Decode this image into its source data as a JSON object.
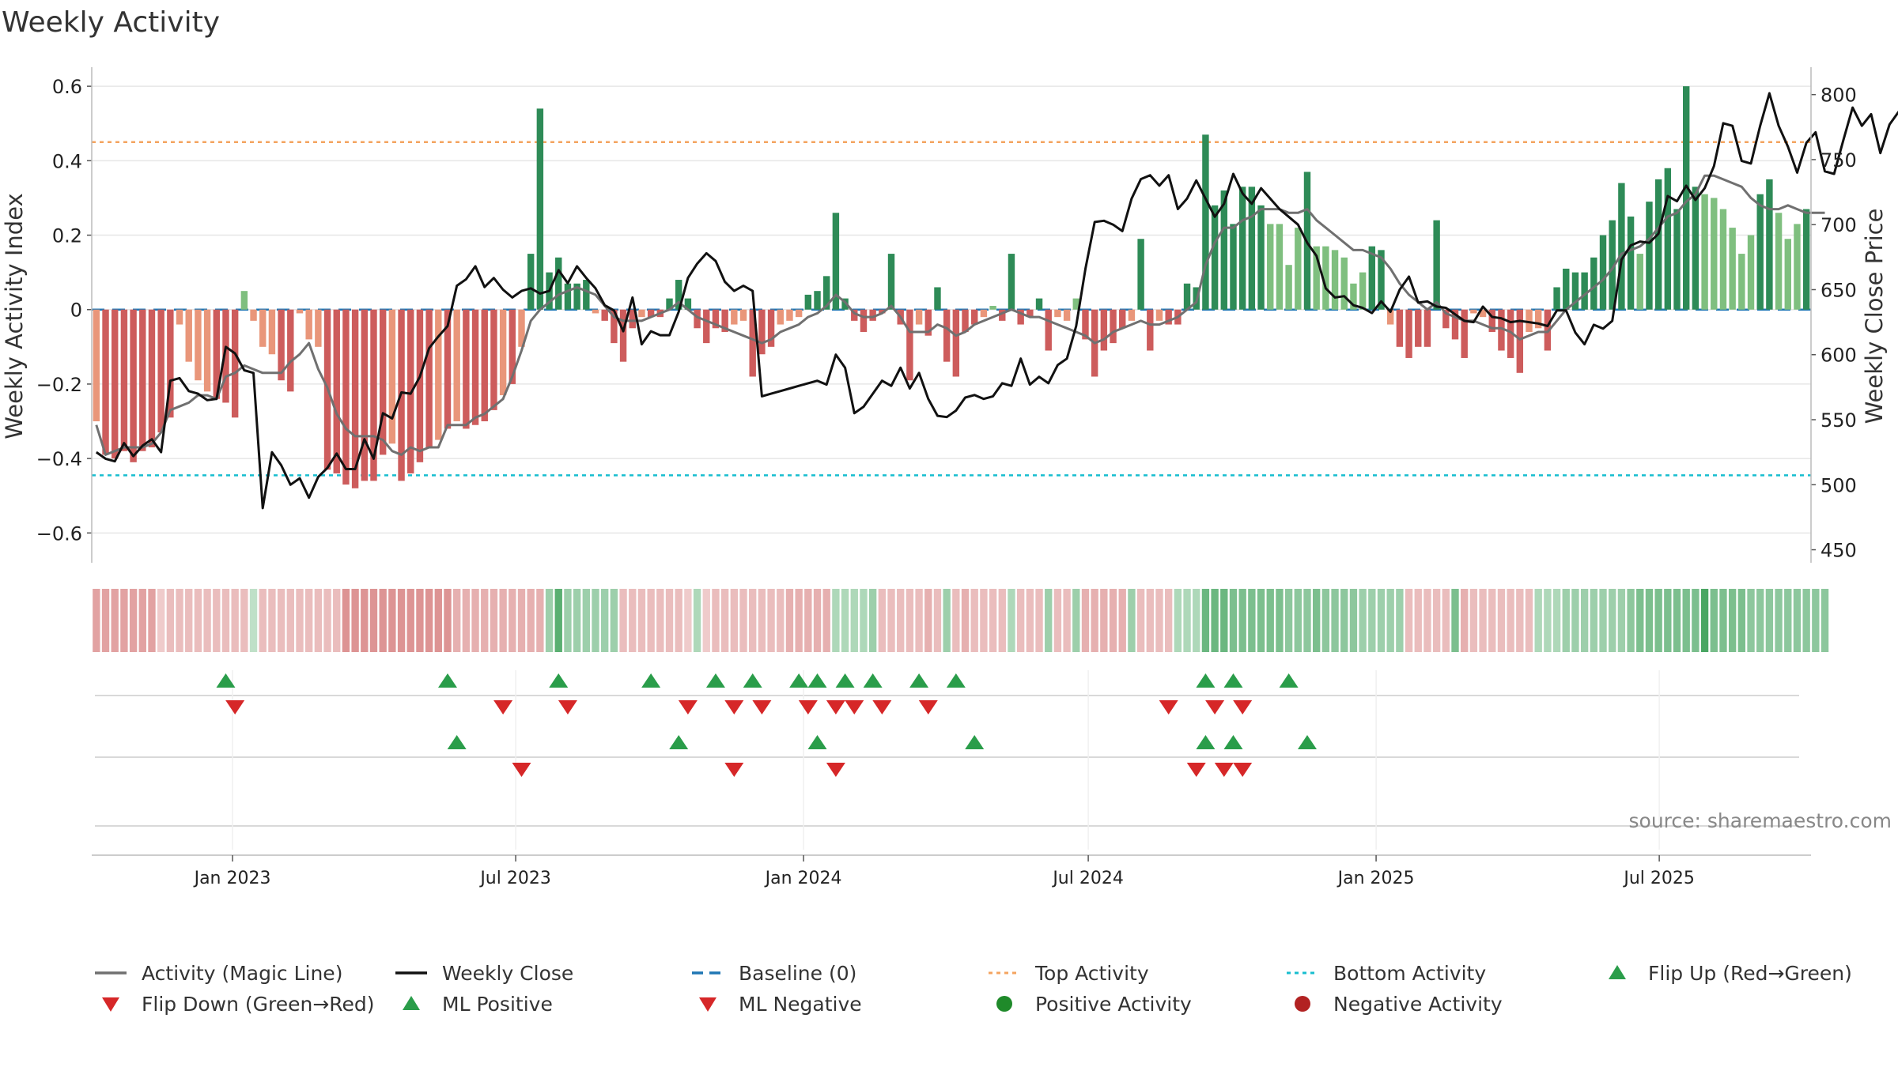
{
  "chart_data": {
    "type": "bar",
    "title": "Weekly Activity",
    "ylabel_left": "Weekly Activity Index",
    "ylabel_right": "Weekly Close Price",
    "left_axis": {
      "range": [
        -0.68,
        0.63
      ],
      "ticks": [
        0.6,
        0.4,
        0.2,
        0,
        -0.2,
        -0.4,
        -0.6
      ],
      "tick_labels": [
        "0.6",
        "0.4",
        "0.2",
        "0",
        "−0.2",
        "−0.4",
        "−0.6"
      ]
    },
    "right_axis": {
      "range": [
        440,
        815
      ],
      "ticks": [
        800,
        750,
        700,
        650,
        600,
        550,
        500,
        450
      ],
      "tick_labels": [
        "800",
        "750",
        "700",
        "650",
        "600",
        "550",
        "500",
        "450"
      ]
    },
    "top_activity": 0.45,
    "bottom_activity": -0.445,
    "x_start": "2022-10-03",
    "x_end": "2025-10-06",
    "x_tick_labels": [
      {
        "date": "2023-01-01",
        "label": "Jan 2023"
      },
      {
        "date": "2023-07-01",
        "label": "Jul 2023"
      },
      {
        "date": "2024-01-01",
        "label": "Jan 2024"
      },
      {
        "date": "2024-07-01",
        "label": "Jul 2024"
      },
      {
        "date": "2025-01-01",
        "label": "Jan 2025"
      },
      {
        "date": "2025-07-01",
        "label": "Jul 2025"
      }
    ],
    "activity": [
      -0.3,
      -0.39,
      -0.4,
      -0.38,
      -0.41,
      -0.38,
      -0.37,
      -0.33,
      -0.29,
      -0.04,
      -0.14,
      -0.19,
      -0.22,
      -0.24,
      -0.25,
      -0.29,
      0.05,
      -0.03,
      -0.1,
      -0.12,
      -0.19,
      -0.22,
      -0.01,
      -0.08,
      -0.1,
      -0.43,
      -0.44,
      -0.47,
      -0.48,
      -0.46,
      -0.46,
      -0.39,
      -0.36,
      -0.46,
      -0.44,
      -0.41,
      -0.37,
      -0.35,
      -0.32,
      -0.3,
      -0.32,
      -0.31,
      -0.3,
      -0.27,
      -0.23,
      -0.2,
      -0.1,
      0.15,
      0.54,
      0.1,
      0.14,
      0.07,
      0.07,
      0.08,
      -0.01,
      -0.03,
      -0.09,
      -0.14,
      -0.05,
      -0.02,
      -0.02,
      -0.02,
      0.03,
      0.08,
      0.03,
      -0.05,
      -0.09,
      -0.05,
      -0.06,
      -0.04,
      -0.03,
      -0.18,
      -0.12,
      -0.1,
      -0.04,
      -0.03,
      -0.02,
      0.04,
      0.05,
      0.09,
      0.26,
      0.03,
      -0.03,
      -0.06,
      -0.03,
      -0.01,
      0.15,
      -0.04,
      -0.19,
      -0.04,
      -0.07,
      0.06,
      -0.14,
      -0.18,
      -0.06,
      -0.04,
      -0.02,
      0.01,
      -0.03,
      0.15,
      -0.04,
      -0.02,
      0.03,
      -0.11,
      -0.02,
      -0.03,
      0.03,
      -0.08,
      -0.18,
      -0.11,
      -0.09,
      -0.05,
      -0.03,
      0.19,
      -0.11,
      -0.03,
      -0.04,
      -0.04,
      0.07,
      0.06,
      0.47,
      0.28,
      0.32,
      0.23,
      0.33,
      0.33,
      0.28,
      0.23,
      0.23,
      0.12,
      0.22,
      0.37,
      0.17,
      0.17,
      0.16,
      0.14,
      0.07,
      0.1,
      0.17,
      0.16,
      -0.04,
      -0.1,
      -0.13,
      -0.1,
      -0.1,
      0.24,
      -0.05,
      -0.08,
      -0.13,
      -0.01,
      -0.02,
      -0.06,
      -0.11,
      -0.13,
      -0.17,
      -0.06,
      -0.05,
      -0.11,
      0.06,
      0.11,
      0.1,
      0.1,
      0.14,
      0.2,
      0.24,
      0.34,
      0.25,
      0.15,
      0.29,
      0.35,
      0.38,
      0.27,
      0.6,
      0.33,
      0.31,
      0.3,
      0.27,
      0.22,
      0.15,
      0.2,
      0.31,
      0.35,
      0.26,
      0.19,
      0.23,
      0.27
    ],
    "magic_line": [
      -0.31,
      -0.39,
      -0.38,
      -0.37,
      -0.37,
      -0.37,
      -0.36,
      -0.33,
      -0.27,
      -0.26,
      -0.25,
      -0.23,
      -0.23,
      -0.24,
      -0.18,
      -0.17,
      -0.15,
      -0.16,
      -0.17,
      -0.17,
      -0.17,
      -0.14,
      -0.12,
      -0.09,
      -0.16,
      -0.21,
      -0.28,
      -0.32,
      -0.34,
      -0.34,
      -0.34,
      -0.35,
      -0.38,
      -0.39,
      -0.37,
      -0.38,
      -0.37,
      -0.37,
      -0.31,
      -0.31,
      -0.31,
      -0.29,
      -0.28,
      -0.26,
      -0.24,
      -0.18,
      -0.11,
      -0.03,
      0.0,
      0.02,
      0.04,
      0.05,
      0.06,
      0.05,
      0.04,
      0.01,
      -0.02,
      -0.03,
      -0.03,
      -0.03,
      -0.02,
      -0.01,
      0.0,
      0.02,
      0.0,
      -0.02,
      -0.03,
      -0.04,
      -0.05,
      -0.06,
      -0.07,
      -0.08,
      -0.09,
      -0.08,
      -0.06,
      -0.05,
      -0.04,
      -0.02,
      -0.01,
      0.01,
      0.04,
      0.02,
      -0.01,
      -0.02,
      -0.02,
      -0.01,
      0.01,
      -0.02,
      -0.06,
      -0.06,
      -0.06,
      -0.04,
      -0.05,
      -0.07,
      -0.06,
      -0.04,
      -0.03,
      -0.02,
      -0.01,
      0.0,
      -0.01,
      -0.02,
      -0.02,
      -0.03,
      -0.04,
      -0.05,
      -0.06,
      -0.07,
      -0.09,
      -0.08,
      -0.06,
      -0.05,
      -0.04,
      -0.03,
      -0.04,
      -0.04,
      -0.03,
      -0.02,
      0.0,
      0.02,
      0.12,
      0.18,
      0.22,
      0.22,
      0.24,
      0.25,
      0.27,
      0.27,
      0.27,
      0.26,
      0.26,
      0.27,
      0.24,
      0.22,
      0.2,
      0.18,
      0.16,
      0.16,
      0.15,
      0.14,
      0.11,
      0.07,
      0.04,
      0.02,
      0.0,
      0.02,
      -0.01,
      -0.02,
      -0.03,
      -0.03,
      -0.04,
      -0.05,
      -0.05,
      -0.06,
      -0.08,
      -0.07,
      -0.06,
      -0.06,
      -0.03,
      0.0,
      0.02,
      0.04,
      0.06,
      0.08,
      0.11,
      0.15,
      0.16,
      0.17,
      0.19,
      0.22,
      0.25,
      0.26,
      0.29,
      0.31,
      0.36,
      0.36,
      0.35,
      0.34,
      0.33,
      0.3,
      0.28,
      0.27,
      0.27,
      0.28,
      0.27,
      0.26,
      0.26,
      0.26
    ],
    "weekly_close": [
      525,
      520,
      518,
      532,
      522,
      530,
      535,
      525,
      580,
      582,
      572,
      570,
      565,
      566,
      606,
      601,
      588,
      586,
      482,
      525,
      515,
      500,
      505,
      490,
      506,
      513,
      524,
      512,
      512,
      535,
      520,
      555,
      551,
      571,
      570,
      583,
      605,
      614,
      622,
      653,
      658,
      668,
      652,
      659,
      650,
      644,
      649,
      651,
      647,
      649,
      665,
      655,
      668,
      659,
      651,
      638,
      634,
      618,
      644,
      608,
      618,
      615,
      615,
      633,
      659,
      670,
      678,
      672,
      656,
      649,
      653,
      649,
      568,
      570,
      572,
      574,
      576,
      578,
      580,
      577,
      600,
      590,
      555,
      560,
      570,
      580,
      576,
      590,
      574,
      586,
      566,
      553,
      552,
      557,
      567,
      569,
      566,
      568,
      578,
      576,
      597,
      577,
      583,
      578,
      592,
      597,
      622,
      666,
      702,
      703,
      700,
      695,
      720,
      735,
      738,
      730,
      738,
      712,
      720,
      734,
      720,
      706,
      716,
      739,
      724,
      716,
      728,
      720,
      712,
      706,
      700,
      686,
      676,
      651,
      644,
      645,
      638,
      636,
      632,
      641,
      633,
      650,
      660,
      640,
      641,
      637,
      636,
      631,
      626,
      625,
      637,
      629,
      628,
      625,
      626,
      625,
      624,
      622,
      634,
      634,
      617,
      608,
      623,
      620,
      626,
      673,
      684,
      687,
      686,
      693,
      722,
      718,
      730,
      719,
      728,
      745,
      778,
      776,
      749,
      747,
      776,
      801,
      776,
      760,
      740,
      763,
      771,
      741,
      739,
      765,
      790,
      776,
      785,
      755,
      777,
      787
    ],
    "heat": [
      -0.4,
      -0.4,
      -0.4,
      -0.4,
      -0.4,
      -0.4,
      -0.4,
      -0.1,
      -0.2,
      -0.2,
      -0.2,
      -0.2,
      -0.2,
      -0.2,
      -0.2,
      -0.2,
      -0.2,
      0.1,
      -0.2,
      -0.2,
      -0.2,
      -0.2,
      -0.2,
      -0.2,
      -0.2,
      -0.2,
      -0.2,
      -0.5,
      -0.5,
      -0.5,
      -0.5,
      -0.5,
      -0.5,
      -0.5,
      -0.5,
      -0.5,
      -0.5,
      -0.5,
      -0.5,
      -0.3,
      -0.3,
      -0.3,
      -0.3,
      -0.3,
      -0.3,
      -0.3,
      -0.3,
      -0.3,
      -0.3,
      0.3,
      0.7,
      0.3,
      0.3,
      0.3,
      0.3,
      0.3,
      0.3,
      -0.2,
      -0.2,
      -0.2,
      -0.2,
      -0.2,
      -0.2,
      -0.2,
      -0.1,
      0.2,
      -0.1,
      -0.2,
      -0.2,
      -0.2,
      -0.2,
      -0.2,
      -0.2,
      -0.2,
      -0.2,
      -0.3,
      -0.3,
      -0.3,
      -0.3,
      -0.3,
      0.2,
      0.2,
      0.2,
      0.2,
      0.3,
      -0.2,
      -0.2,
      -0.2,
      -0.2,
      -0.2,
      -0.3,
      -0.2,
      0.3,
      -0.2,
      -0.3,
      -0.2,
      -0.2,
      -0.2,
      -0.2,
      0.2,
      -0.2,
      -0.2,
      -0.2,
      0.3,
      -0.2,
      -0.2,
      0.3,
      -0.3,
      -0.3,
      -0.3,
      -0.3,
      -0.3,
      0.3,
      -0.2,
      -0.2,
      -0.2,
      -0.2,
      0.2,
      0.2,
      0.2,
      0.6,
      0.6,
      0.6,
      0.5,
      0.5,
      0.5,
      0.5,
      0.5,
      0.5,
      0.4,
      0.4,
      0.4,
      0.5,
      0.4,
      0.4,
      0.4,
      0.4,
      0.3,
      0.3,
      0.3,
      0.3,
      0.3,
      -0.2,
      -0.2,
      -0.2,
      -0.2,
      -0.2,
      0.5,
      -0.3,
      -0.2,
      -0.2,
      -0.2,
      -0.2,
      -0.2,
      -0.2,
      -0.2,
      0.2,
      0.2,
      0.2,
      0.3,
      0.3,
      0.3,
      0.3,
      0.3,
      0.3,
      0.3,
      0.4,
      0.5,
      0.5,
      0.5,
      0.5,
      0.5,
      0.5,
      0.5,
      0.8,
      0.5,
      0.5,
      0.5,
      0.5,
      0.4,
      0.4,
      0.4,
      0.4,
      0.4,
      0.4,
      0.4,
      0.4,
      0.4
    ],
    "flip_up_weeks": [
      14,
      38,
      50,
      60,
      67,
      71,
      76,
      78,
      81,
      84,
      89,
      93,
      120,
      123,
      129
    ],
    "flip_down_weeks": [
      15,
      44,
      51,
      64,
      69,
      72,
      77,
      80,
      82,
      85,
      90,
      116,
      121,
      124
    ],
    "ml_positive_weeks": [
      39,
      63,
      78,
      95,
      120,
      123,
      131
    ],
    "ml_negative_weeks": [
      46,
      69,
      80,
      119,
      122,
      124
    ],
    "source": "source: sharemaestro.com",
    "legend": [
      {
        "label": "Activity (Magic Line)",
        "symbol": "line",
        "color": "#707070"
      },
      {
        "label": "Weekly Close",
        "symbol": "line",
        "color": "#111111"
      },
      {
        "label": "Baseline (0)",
        "symbol": "dash",
        "color": "#1f77b4"
      },
      {
        "label": "Top Activity",
        "symbol": "dot-line",
        "color": "#f4a460"
      },
      {
        "label": "Bottom Activity",
        "symbol": "dot-line",
        "color": "#17becf"
      },
      {
        "label": "Flip Up (Red→Green)",
        "symbol": "tri-up",
        "color": "#2a9d4a"
      },
      {
        "label": "Flip Down (Green→Red)",
        "symbol": "tri-down",
        "color": "#d62728"
      },
      {
        "label": "ML Positive",
        "symbol": "tri-up",
        "color": "#2a9d4a"
      },
      {
        "label": "ML Negative",
        "symbol": "tri-down",
        "color": "#d62728"
      },
      {
        "label": "Positive Activity",
        "symbol": "circle",
        "color": "#1f8a2a"
      },
      {
        "label": "Negative Activity",
        "symbol": "circle",
        "color": "#b22222"
      }
    ],
    "colors": {
      "pos_strong": "#2e8b57",
      "pos_light": "#7fbf7f",
      "neg_strong": "#cd5c5c",
      "neg_light": "#e9967a",
      "magic_line": "#707070",
      "close": "#111111",
      "baseline": "#1f77b4",
      "top": "#f4a460",
      "bottom": "#17becf",
      "up": "#2a9d4a",
      "down": "#d62728",
      "grid": "#e6e6e6"
    }
  }
}
